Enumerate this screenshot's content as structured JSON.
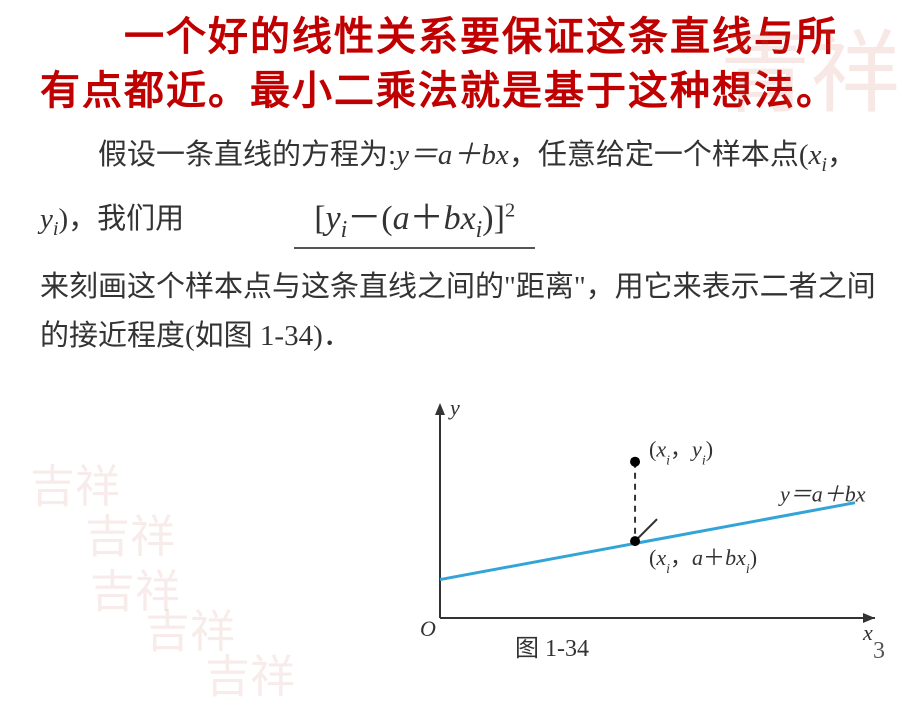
{
  "title": {
    "line1": "　　一个好的线性关系要保证这条直线与所",
    "line2": "有点都近。最小二乘法就是基于这种想法。",
    "color": "#c00000",
    "fontsize": 40
  },
  "paragraph1_prefix": "假设一条直线的方程为:",
  "equation1": "y＝a＋bx",
  "paragraph1_mid": "，任意给定一个样本点(",
  "sample_point_x": "x",
  "sample_point_x_sub": "i",
  "sample_point_sep": "，",
  "sample_point_y": "y",
  "sample_point_y_sub": "i",
  "paragraph1_end": ")，我们用",
  "formula": {
    "text": "[yi－(a＋bxi)]²",
    "display_parts": {
      "open": "[",
      "y": "y",
      "ysub": "i",
      "minus": "－(",
      "a": "a",
      "plus": "＋",
      "b": "bx",
      "bsub": "i",
      "close": ")]",
      "sq": "2"
    }
  },
  "paragraph2": "来刻画这个样本点与这条直线之间的\"距离\"，用它来表示二者之间的接近程度(如图 1-34)．",
  "graph": {
    "type": "line-diagram",
    "origin_label": "O",
    "x_axis_label": "x",
    "y_axis_label": "y",
    "line_equation": "y＝a＋bx",
    "line_color": "#33a4d8",
    "line_width": 3,
    "axis_color": "#333333",
    "point_upper_label": "(xi，yi)",
    "point_lower_label": "(xi，a＋bxi)",
    "point_color": "#000000",
    "dash_color": "#333333",
    "caption": "图 1-34",
    "x_range": [
      0,
      10
    ],
    "y_range": [
      0,
      8
    ],
    "line_start": [
      0,
      1.5
    ],
    "line_end": [
      10,
      4.5
    ],
    "point_x": 4.7,
    "point_upper_y": 6.1,
    "point_lower_y": 3.0
  },
  "page_number": "3",
  "watermarks": {
    "top_right": "青祥",
    "small": "吉祥"
  }
}
